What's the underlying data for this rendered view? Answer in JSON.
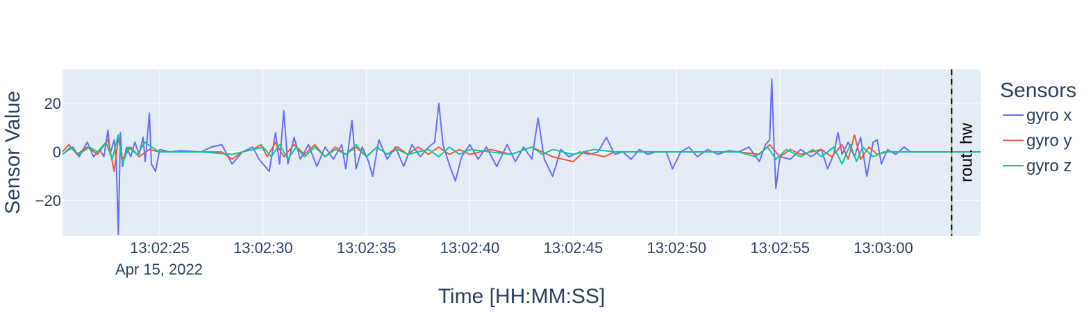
{
  "chart_data": {
    "type": "line",
    "xlabel": "Time [HH:MM:SS]",
    "ylabel": "Sensor Value",
    "date_label": "Apr 15, 2022",
    "x_tick_labels": [
      "13:02:25",
      "13:02:30",
      "13:02:35",
      "13:02:40",
      "13:02:45",
      "13:02:50",
      "13:02:55",
      "13:03:00"
    ],
    "x_tick_values": [
      "13:02:25",
      "13:02:30",
      "13:02:35",
      "13:02:40",
      "13:02:45",
      "13:02:50",
      "13:02:55",
      "13:03:00"
    ],
    "xlim": [
      "13:02:20.3",
      "13:03:04.7"
    ],
    "y_ticks": [
      -20,
      0,
      20
    ],
    "y_tick_labels": [
      "−20",
      "0",
      "20"
    ],
    "ylim": [
      -34.5,
      34
    ],
    "grid": true,
    "legend": {
      "title": "Sensors",
      "position": "right"
    },
    "background": "#e5ecf6",
    "vline": {
      "x": "13:03:03.3",
      "label": "rout. hw",
      "colors": [
        "#9acd32",
        "#000000"
      ]
    },
    "series": [
      {
        "name": "gyro x",
        "color": "#636efa",
        "points": [
          [
            "13:02:20.3",
            -1
          ],
          [
            "13:02:20.8",
            2
          ],
          [
            "13:02:21.1",
            -2
          ],
          [
            "13:02:21.5",
            4
          ],
          [
            "13:02:21.8",
            -2
          ],
          [
            "13:02:22.1",
            1
          ],
          [
            "13:02:22.3",
            -2
          ],
          [
            "13:02:22.5",
            9
          ],
          [
            "13:02:22.6",
            -1
          ],
          [
            "13:02:22.8",
            5
          ],
          [
            "13:02:22.9",
            -3
          ],
          [
            "13:02:23.0",
            -34
          ],
          [
            "13:02:23.1",
            8
          ],
          [
            "13:02:23.2",
            -6
          ],
          [
            "13:02:23.4",
            2
          ],
          [
            "13:02:23.6",
            -2
          ],
          [
            "13:02:23.8",
            4
          ],
          [
            "13:02:24.0",
            -1
          ],
          [
            "13:02:24.2",
            6
          ],
          [
            "13:02:24.3",
            -4
          ],
          [
            "13:02:24.5",
            16
          ],
          [
            "13:02:24.6",
            -5
          ],
          [
            "13:02:24.8",
            -8
          ],
          [
            "13:02:25.0",
            1
          ],
          [
            "13:02:25.5",
            0
          ],
          [
            "13:02:26.0",
            0.5
          ],
          [
            "13:02:27.0",
            0
          ],
          [
            "13:02:27.5",
            2
          ],
          [
            "13:02:28.0",
            3
          ],
          [
            "13:02:28.5",
            -5
          ],
          [
            "13:02:29.0",
            0
          ],
          [
            "13:02:29.5",
            2
          ],
          [
            "13:02:29.8",
            -3
          ],
          [
            "13:02:30.3",
            -8
          ],
          [
            "13:02:30.6",
            8
          ],
          [
            "13:02:30.8",
            -5
          ],
          [
            "13:02:31.0",
            17
          ],
          [
            "13:02:31.2",
            -5
          ],
          [
            "13:02:31.5",
            6
          ],
          [
            "13:02:31.8",
            -3
          ],
          [
            "13:02:32.2",
            3
          ],
          [
            "13:02:32.6",
            -6
          ],
          [
            "13:02:33.0",
            2
          ],
          [
            "13:02:33.4",
            -3
          ],
          [
            "13:02:33.8",
            3
          ],
          [
            "13:02:34.0",
            -7
          ],
          [
            "13:02:34.3",
            13
          ],
          [
            "13:02:34.5",
            -7
          ],
          [
            "13:02:34.8",
            2
          ],
          [
            "13:02:35.1",
            -4
          ],
          [
            "13:02:35.3",
            -10
          ],
          [
            "13:02:35.6",
            5
          ],
          [
            "13:02:36.0",
            -3
          ],
          [
            "13:02:36.4",
            2
          ],
          [
            "13:02:36.8",
            -6
          ],
          [
            "13:02:37.2",
            3
          ],
          [
            "13:02:37.6",
            -2
          ],
          [
            "13:02:38.0",
            2
          ],
          [
            "13:02:38.3",
            4
          ],
          [
            "13:02:38.5",
            20
          ],
          [
            "13:02:38.7",
            3
          ],
          [
            "13:02:39.0",
            -5
          ],
          [
            "13:02:39.3",
            -12
          ],
          [
            "13:02:39.6",
            -2
          ],
          [
            "13:02:40.0",
            3
          ],
          [
            "13:02:40.4",
            -3
          ],
          [
            "13:02:40.8",
            2
          ],
          [
            "13:02:41.3",
            -6
          ],
          [
            "13:02:41.8",
            3
          ],
          [
            "13:02:42.2",
            -4
          ],
          [
            "13:02:42.6",
            2
          ],
          [
            "13:02:43.0",
            -3
          ],
          [
            "13:02:43.3",
            14
          ],
          [
            "13:02:43.6",
            -3
          ],
          [
            "13:02:44.0",
            -10
          ],
          [
            "13:02:44.4",
            1
          ],
          [
            "13:02:44.8",
            -2
          ],
          [
            "13:02:45.3",
            0
          ],
          [
            "13:02:45.8",
            -1
          ],
          [
            "13:02:46.2",
            0
          ],
          [
            "13:02:46.6",
            6
          ],
          [
            "13:02:47.0",
            -1
          ],
          [
            "13:02:47.4",
            0
          ],
          [
            "13:02:47.8",
            -3
          ],
          [
            "13:02:48.2",
            1
          ],
          [
            "13:02:48.6",
            -1
          ],
          [
            "13:02:49.0",
            0
          ],
          [
            "13:02:49.5",
            0
          ],
          [
            "13:02:49.8",
            -7
          ],
          [
            "13:02:50.2",
            0
          ],
          [
            "13:02:50.6",
            2
          ],
          [
            "13:02:51.0",
            -2
          ],
          [
            "13:02:51.5",
            1
          ],
          [
            "13:02:52.0",
            -1
          ],
          [
            "13:02:52.5",
            0.5
          ],
          [
            "13:02:53.0",
            0
          ],
          [
            "13:02:53.5",
            2
          ],
          [
            "13:02:54.0",
            -4
          ],
          [
            "13:02:54.3",
            3
          ],
          [
            "13:02:54.5",
            5
          ],
          [
            "13:02:54.6",
            30
          ],
          [
            "13:02:54.7",
            5
          ],
          [
            "13:02:54.8",
            -15
          ],
          [
            "13:02:55.0",
            -2
          ],
          [
            "13:02:55.5",
            -3
          ],
          [
            "13:02:56.0",
            1
          ],
          [
            "13:02:56.5",
            -2
          ],
          [
            "13:02:57.0",
            1
          ],
          [
            "13:02:57.3",
            -7
          ],
          [
            "13:02:57.6",
            -1
          ],
          [
            "13:02:57.8",
            8
          ],
          [
            "13:02:58.0",
            -1
          ],
          [
            "13:02:58.3",
            4
          ],
          [
            "13:02:58.6",
            -2
          ],
          [
            "13:02:58.9",
            6
          ],
          [
            "13:02:59.2",
            -10
          ],
          [
            "13:02:59.5",
            4
          ],
          [
            "13:02:59.7",
            5
          ],
          [
            "13:02:59.9",
            -5
          ],
          [
            "13:03:00.2",
            1
          ],
          [
            "13:03:00.6",
            -1
          ],
          [
            "13:03:01.0",
            2
          ],
          [
            "13:03:01.3",
            0
          ],
          [
            "13:03:02.0",
            0
          ],
          [
            "13:03:04.7",
            0
          ]
        ]
      },
      {
        "name": "gyro y",
        "color": "#ef553b",
        "points": [
          [
            "13:02:20.3",
            0
          ],
          [
            "13:02:20.6",
            3
          ],
          [
            "13:02:21.0",
            -1
          ],
          [
            "13:02:21.5",
            2
          ],
          [
            "13:02:22.0",
            -1
          ],
          [
            "13:02:22.5",
            5
          ],
          [
            "13:02:22.8",
            -8
          ],
          [
            "13:02:23.0",
            6
          ],
          [
            "13:02:23.2",
            -3
          ],
          [
            "13:02:23.6",
            2
          ],
          [
            "13:02:24.0",
            -2
          ],
          [
            "13:02:24.5",
            1
          ],
          [
            "13:02:25.0",
            0
          ],
          [
            "13:02:27.0",
            0
          ],
          [
            "13:02:28.0",
            0
          ],
          [
            "13:02:28.5",
            -3
          ],
          [
            "13:02:29.0",
            0
          ],
          [
            "13:02:29.5",
            1
          ],
          [
            "13:02:29.9",
            3
          ],
          [
            "13:02:30.2",
            -2
          ],
          [
            "13:02:30.6",
            4
          ],
          [
            "13:02:31.0",
            -2
          ],
          [
            "13:02:31.5",
            3
          ],
          [
            "13:02:32.0",
            -1
          ],
          [
            "13:02:32.5",
            3
          ],
          [
            "13:02:33.0",
            -2
          ],
          [
            "13:02:33.5",
            2
          ],
          [
            "13:02:34.0",
            -1
          ],
          [
            "13:02:34.5",
            2
          ],
          [
            "13:02:35.0",
            -2
          ],
          [
            "13:02:35.5",
            2
          ],
          [
            "13:02:36.0",
            -1
          ],
          [
            "13:02:36.5",
            2
          ],
          [
            "13:02:37.0",
            -1
          ],
          [
            "13:02:37.5",
            2
          ],
          [
            "13:02:38.0",
            -1
          ],
          [
            "13:02:38.5",
            2
          ],
          [
            "13:02:39.0",
            -1
          ],
          [
            "13:02:39.5",
            1
          ],
          [
            "13:02:40.0",
            -1
          ],
          [
            "13:02:41.0",
            1
          ],
          [
            "13:02:42.0",
            -1
          ],
          [
            "13:02:43.0",
            2
          ],
          [
            "13:02:44.0",
            -2
          ],
          [
            "13:02:45.0",
            -4
          ],
          [
            "13:02:45.5",
            0
          ],
          [
            "13:02:46.5",
            -2
          ],
          [
            "13:02:47.0",
            0
          ],
          [
            "13:02:48.0",
            0
          ],
          [
            "13:02:50.0",
            0
          ],
          [
            "13:02:52.0",
            0
          ],
          [
            "13:02:53.0",
            0
          ],
          [
            "13:02:54.0",
            -1
          ],
          [
            "13:02:54.5",
            3
          ],
          [
            "13:02:55.0",
            -2
          ],
          [
            "13:02:55.5",
            1
          ],
          [
            "13:02:56.0",
            -1
          ],
          [
            "13:02:57.0",
            1
          ],
          [
            "13:02:57.5",
            -2
          ],
          [
            "13:02:58.0",
            3
          ],
          [
            "13:02:58.3",
            -3
          ],
          [
            "13:02:58.6",
            7
          ],
          [
            "13:02:58.9",
            -3
          ],
          [
            "13:02:59.3",
            2
          ],
          [
            "13:02:59.7",
            -1
          ],
          [
            "13:03:00.2",
            0
          ],
          [
            "13:03:01.0",
            0
          ],
          [
            "13:03:04.7",
            0
          ]
        ]
      },
      {
        "name": "gyro z",
        "color": "#00cc96",
        "points": [
          [
            "13:02:20.3",
            -1
          ],
          [
            "13:02:20.7",
            2
          ],
          [
            "13:02:21.1",
            -1
          ],
          [
            "13:02:21.6",
            2
          ],
          [
            "13:02:22.0",
            0
          ],
          [
            "13:02:22.4",
            4
          ],
          [
            "13:02:22.7",
            -3
          ],
          [
            "13:02:23.0",
            7
          ],
          [
            "13:02:23.2",
            -5
          ],
          [
            "13:02:23.5",
            2
          ],
          [
            "13:02:23.9",
            -1
          ],
          [
            "13:02:24.3",
            4
          ],
          [
            "13:02:24.6",
            2
          ],
          [
            "13:02:25.0",
            0
          ],
          [
            "13:02:27.0",
            0
          ],
          [
            "13:02:28.5",
            -1
          ],
          [
            "13:02:29.0",
            0
          ],
          [
            "13:02:30.0",
            2
          ],
          [
            "13:02:30.4",
            -2
          ],
          [
            "13:02:30.8",
            3
          ],
          [
            "13:02:31.2",
            -3
          ],
          [
            "13:02:31.6",
            2
          ],
          [
            "13:02:32.0",
            -2
          ],
          [
            "13:02:32.5",
            2
          ],
          [
            "13:02:33.0",
            -2
          ],
          [
            "13:02:33.5",
            1
          ],
          [
            "13:02:34.0",
            -1
          ],
          [
            "13:02:34.5",
            3
          ],
          [
            "13:02:35.0",
            -2
          ],
          [
            "13:02:35.5",
            2
          ],
          [
            "13:02:36.0",
            -1
          ],
          [
            "13:02:36.5",
            1
          ],
          [
            "13:02:37.0",
            -1
          ],
          [
            "13:02:38.0",
            1
          ],
          [
            "13:02:38.5",
            -2
          ],
          [
            "13:02:39.0",
            2
          ],
          [
            "13:02:39.5",
            -1
          ],
          [
            "13:02:40.0",
            1
          ],
          [
            "13:02:41.0",
            0
          ],
          [
            "13:02:42.0",
            -1
          ],
          [
            "13:02:43.0",
            2
          ],
          [
            "13:02:43.5",
            -1
          ],
          [
            "13:02:44.0",
            1
          ],
          [
            "13:02:45.0",
            -1
          ],
          [
            "13:02:46.0",
            1
          ],
          [
            "13:02:47.0",
            0
          ],
          [
            "13:02:49.0",
            0
          ],
          [
            "13:02:51.0",
            0
          ],
          [
            "13:02:53.0",
            0
          ],
          [
            "13:02:53.8",
            -2
          ],
          [
            "13:02:54.4",
            2
          ],
          [
            "13:02:54.8",
            -3
          ],
          [
            "13:02:55.3",
            1
          ],
          [
            "13:02:56.0",
            -2
          ],
          [
            "13:02:56.6",
            1
          ],
          [
            "13:02:57.0",
            -2
          ],
          [
            "13:02:57.6",
            2
          ],
          [
            "13:02:58.0",
            -5
          ],
          [
            "13:02:58.4",
            3
          ],
          [
            "13:02:58.7",
            -4
          ],
          [
            "13:02:59.0",
            2
          ],
          [
            "13:02:59.5",
            -2
          ],
          [
            "13:03:00.0",
            0
          ],
          [
            "13:03:01.0",
            0
          ],
          [
            "13:03:04.7",
            0
          ]
        ]
      }
    ]
  }
}
